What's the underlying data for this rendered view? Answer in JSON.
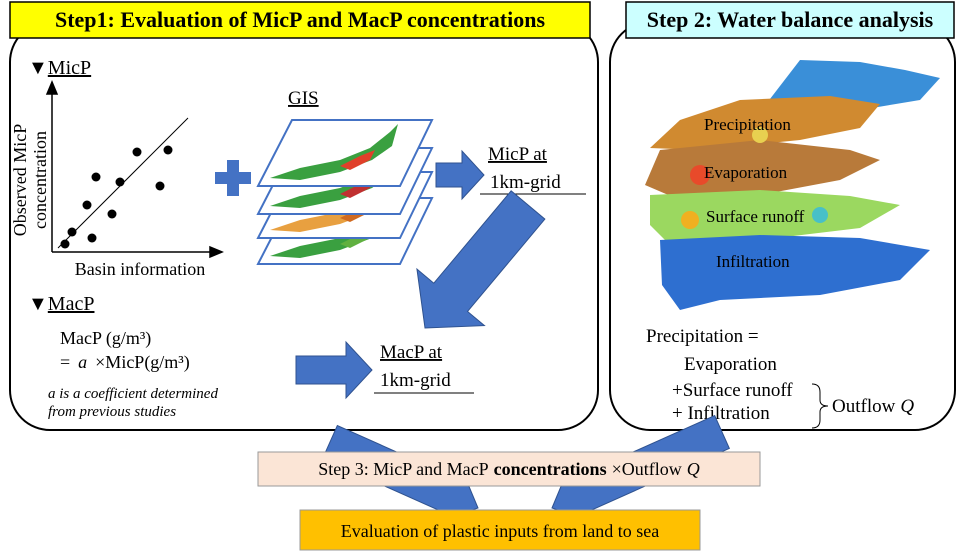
{
  "step1": {
    "title": "Step1: Evaluation of MicP and MacP concentrations",
    "micp": {
      "marker": "▼",
      "heading": "MicP",
      "y_axis_label": [
        "Observed MicP",
        "concentration"
      ],
      "x_axis_label": "Basin information"
    },
    "gis_label": "GIS",
    "micp_result": [
      "MicP at",
      "1km-grid"
    ],
    "macp": {
      "marker": "▼",
      "heading": "MacP",
      "formula_line1": "MacP (g/m³)",
      "formula_line2": [
        "=",
        "a",
        "×MicP(g/m³)"
      ],
      "note": [
        "a is a coefficient determined",
        "from previous studies"
      ]
    },
    "macp_result": [
      "MacP at",
      "1km-grid"
    ]
  },
  "step2": {
    "title": "Step 2: Water balance analysis",
    "map_labels": [
      "Precipitation",
      "Evaporation",
      "Surface runoff",
      "Infiltration"
    ],
    "equation": [
      "Precipitation =",
      "Evaporation",
      "+Surface runoff",
      "+ Infiltration"
    ],
    "outflow": [
      "Outflow",
      "Q"
    ]
  },
  "step3": {
    "text": [
      "Step 3: MicP and MacP",
      "concentrations",
      "×Outflow",
      "Q"
    ]
  },
  "final": {
    "text": "Evaluation of plastic inputs from land to sea"
  }
}
